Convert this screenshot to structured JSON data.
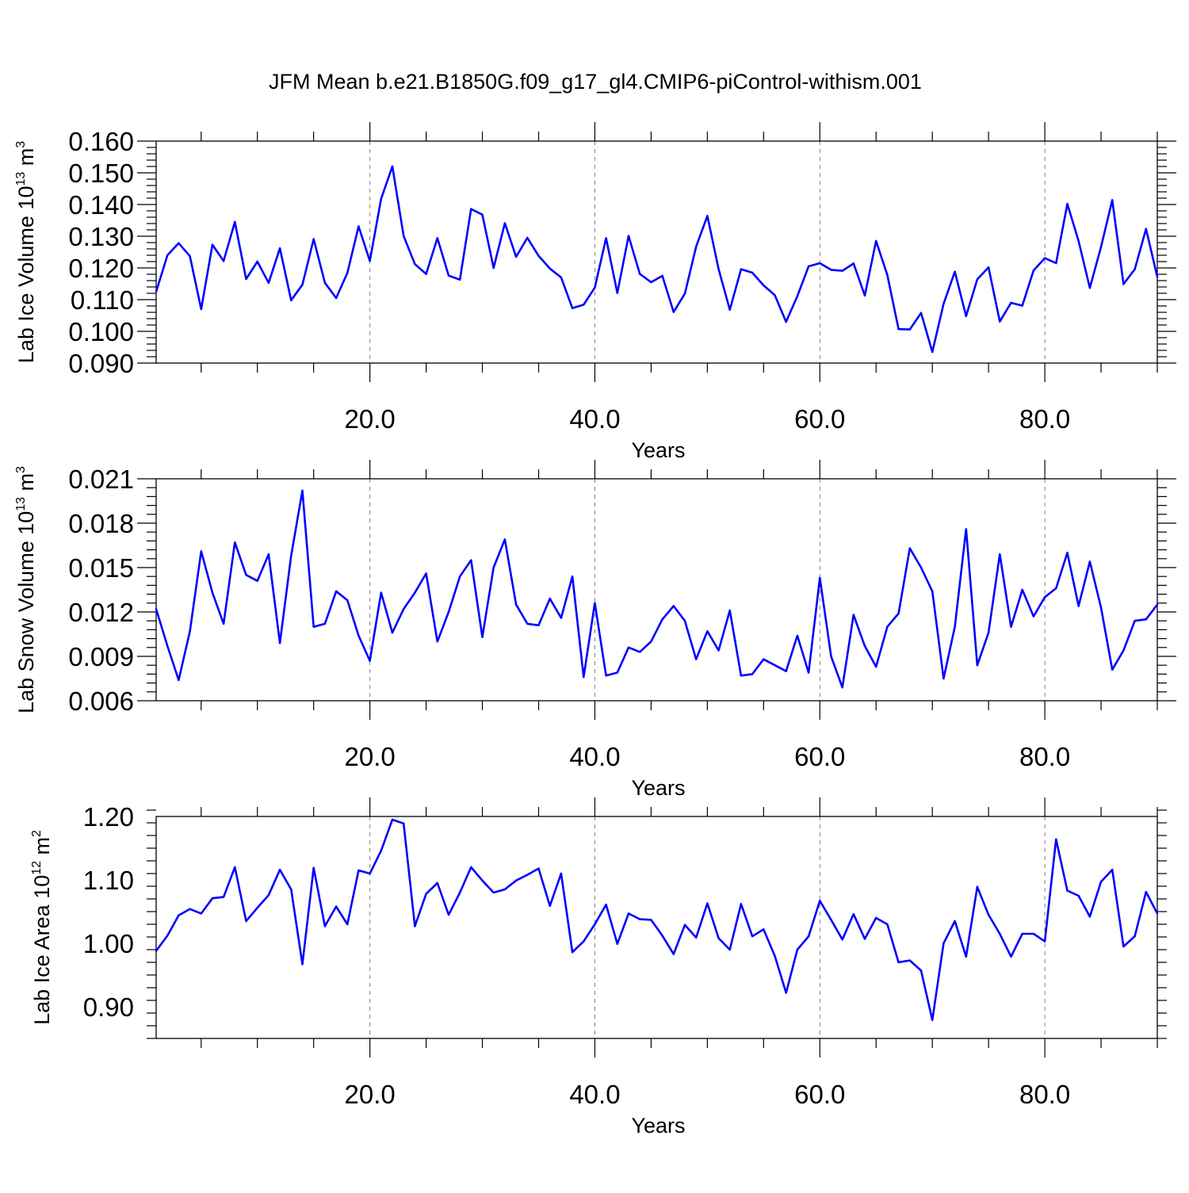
{
  "title": "JFM Mean b.e21.B1850G.f09_g17_gl4.CMIP6-piControl-withism.001",
  "colors": {
    "line": "#0000ff",
    "axis": "#000000",
    "grid": "#808080"
  },
  "chart_data": [
    {
      "type": "line",
      "xlabel": "Years",
      "ylabel": {
        "text": "Lab Ice Volume 10",
        "sup": "13",
        "unit": " m",
        "unit_sup": "3"
      },
      "xlim": [
        1,
        90
      ],
      "ylim": [
        0.09,
        0.16
      ],
      "xticks": [
        20,
        40,
        60,
        80
      ],
      "xtick_labels": [
        "20.0",
        "40.0",
        "60.0",
        "80.0"
      ],
      "yticks": [
        0.09,
        0.1,
        0.11,
        0.12,
        0.13,
        0.14,
        0.15,
        0.16
      ],
      "ytick_labels": [
        "0.090",
        "0.100",
        "0.110",
        "0.120",
        "0.130",
        "0.140",
        "0.150",
        "0.160"
      ],
      "x_start": 1,
      "values": [
        0.1125,
        0.124,
        0.1278,
        0.1237,
        0.107,
        0.1273,
        0.1222,
        0.1345,
        0.1165,
        0.122,
        0.1153,
        0.1262,
        0.1098,
        0.1147,
        0.1291,
        0.1153,
        0.1105,
        0.1184,
        0.1331,
        0.1222,
        0.1418,
        0.152,
        0.1301,
        0.1212,
        0.1181,
        0.1294,
        0.1176,
        0.1163,
        0.1386,
        0.1368,
        0.12,
        0.1341,
        0.1235,
        0.1295,
        0.1238,
        0.1198,
        0.117,
        0.1073,
        0.1084,
        0.1138,
        0.1294,
        0.1121,
        0.1301,
        0.1181,
        0.1155,
        0.1175,
        0.1061,
        0.1119,
        0.1267,
        0.1364,
        0.1196,
        0.1068,
        0.1196,
        0.1185,
        0.1145,
        0.1114,
        0.103,
        0.1111,
        0.1205,
        0.1215,
        0.1194,
        0.1191,
        0.1214,
        0.1113,
        0.1285,
        0.1178,
        0.1007,
        0.1006,
        0.1058,
        0.0935,
        0.1087,
        0.1188,
        0.1048,
        0.1164,
        0.1202,
        0.1031,
        0.109,
        0.1081,
        0.1192,
        0.1231,
        0.1215,
        0.1402,
        0.1285,
        0.1137,
        0.1266,
        0.1414,
        0.1149,
        0.1196,
        0.1323,
        0.1172
      ]
    },
    {
      "type": "line",
      "xlabel": "Years",
      "ylabel": {
        "text": "Lab Snow Volume 10",
        "sup": "13",
        "unit": " m",
        "unit_sup": "3"
      },
      "xlim": [
        1,
        90
      ],
      "ylim": [
        0.006,
        0.021
      ],
      "xticks": [
        20,
        40,
        60,
        80
      ],
      "xtick_labels": [
        "20.0",
        "40.0",
        "60.0",
        "80.0"
      ],
      "yticks": [
        0.006,
        0.009,
        0.012,
        0.015,
        0.018,
        0.021
      ],
      "ytick_labels": [
        "0.006",
        "0.009",
        "0.012",
        "0.015",
        "0.018",
        "0.021"
      ],
      "x_start": 1,
      "values": [
        0.0122,
        0.0097,
        0.0074,
        0.0107,
        0.0161,
        0.0133,
        0.0112,
        0.0167,
        0.0145,
        0.0141,
        0.0159,
        0.0099,
        0.0158,
        0.0202,
        0.011,
        0.0112,
        0.0134,
        0.0128,
        0.0104,
        0.0087,
        0.0133,
        0.0106,
        0.0122,
        0.0133,
        0.0146,
        0.01,
        0.012,
        0.0144,
        0.0155,
        0.0103,
        0.015,
        0.0169,
        0.0125,
        0.0112,
        0.0111,
        0.0129,
        0.0116,
        0.0144,
        0.0076,
        0.0126,
        0.0077,
        0.0079,
        0.0096,
        0.0093,
        0.01,
        0.0115,
        0.0124,
        0.0114,
        0.0088,
        0.0107,
        0.0094,
        0.0121,
        0.0077,
        0.0078,
        0.0088,
        0.0084,
        0.008,
        0.0104,
        0.0079,
        0.0143,
        0.009,
        0.0069,
        0.0118,
        0.0097,
        0.0083,
        0.011,
        0.0119,
        0.0163,
        0.015,
        0.0134,
        0.0075,
        0.011,
        0.0176,
        0.0084,
        0.0106,
        0.0159,
        0.011,
        0.0135,
        0.0117,
        0.013,
        0.0136,
        0.016,
        0.0124,
        0.0154,
        0.0123,
        0.0081,
        0.0094,
        0.0114,
        0.0115,
        0.0125
      ]
    },
    {
      "type": "line",
      "xlabel": "Years",
      "ylabel": {
        "text": "Lab Ice Area 10",
        "sup": "12",
        "unit": " m",
        "unit_sup": "2"
      },
      "xlim": [
        1,
        90
      ],
      "ylim": [
        0.85,
        1.2
      ],
      "xticks": [
        20,
        40,
        60,
        80
      ],
      "xtick_labels": [
        "20.0",
        "40.0",
        "60.0",
        "80.0"
      ],
      "yticks": [
        0.9,
        1.0,
        1.1,
        1.2
      ],
      "ytick_labels": [
        "0.90",
        "1.00",
        "1.10",
        "1.20"
      ],
      "x_start": 1,
      "values": [
        0.988,
        1.012,
        1.044,
        1.054,
        1.047,
        1.071,
        1.073,
        1.12,
        1.035,
        1.056,
        1.076,
        1.116,
        1.085,
        0.967,
        1.119,
        1.027,
        1.058,
        1.03,
        1.115,
        1.11,
        1.146,
        1.195,
        1.189,
        1.027,
        1.078,
        1.095,
        1.045,
        1.08,
        1.12,
        1.099,
        1.08,
        1.085,
        1.099,
        1.108,
        1.118,
        1.059,
        1.11,
        0.986,
        1.003,
        1.03,
        1.061,
        0.999,
        1.047,
        1.038,
        1.037,
        1.012,
        0.983,
        1.029,
        1.009,
        1.063,
        1.008,
        0.99,
        1.062,
        1.011,
        1.022,
        0.98,
        0.922,
        0.99,
        1.011,
        1.067,
        1.037,
        1.006,
        1.046,
        1.007,
        1.04,
        1.03,
        0.97,
        0.973,
        0.957,
        0.879,
        1.0,
        1.035,
        0.979,
        1.089,
        1.045,
        1.015,
        0.979,
        1.015,
        1.015,
        1.003,
        1.164,
        1.083,
        1.075,
        1.042,
        1.097,
        1.116,
        0.995,
        1.011,
        1.081,
        1.047
      ]
    }
  ]
}
